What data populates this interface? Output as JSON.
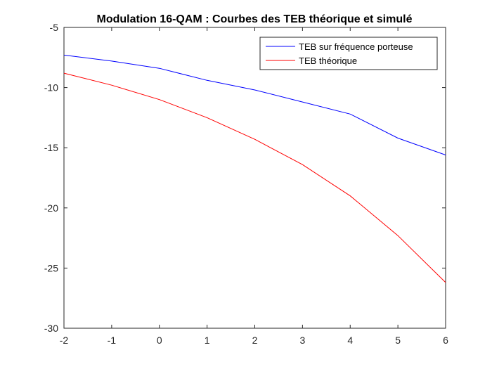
{
  "chart_data": {
    "type": "line",
    "title": "Modulation 16-QAM : Courbes des TEB théorique et simulé",
    "xlabel": "",
    "ylabel": "",
    "xlim": [
      -2,
      6
    ],
    "ylim": [
      -30,
      -5
    ],
    "xticks": [
      "-2",
      "-1",
      "0",
      "1",
      "2",
      "3",
      "4",
      "5",
      "6"
    ],
    "yticks": [
      "-5",
      "-10",
      "-15",
      "-20",
      "-25",
      "-30"
    ],
    "x": [
      -2,
      -1,
      0,
      1,
      2,
      3,
      4,
      5,
      6
    ],
    "grid": false,
    "legend_position": "top-right",
    "series": [
      {
        "name": "TEB sur fréquence porteuse",
        "color": "#0000ff",
        "values": [
          -7.3,
          -7.8,
          -8.4,
          -9.4,
          -10.2,
          -11.2,
          -12.2,
          -14.2,
          -15.6
        ]
      },
      {
        "name": "TEB théorique",
        "color": "#ff0000",
        "values": [
          -8.8,
          -9.8,
          -11.0,
          -12.5,
          -14.3,
          -16.4,
          -19.0,
          -22.3,
          -26.2
        ]
      }
    ]
  }
}
